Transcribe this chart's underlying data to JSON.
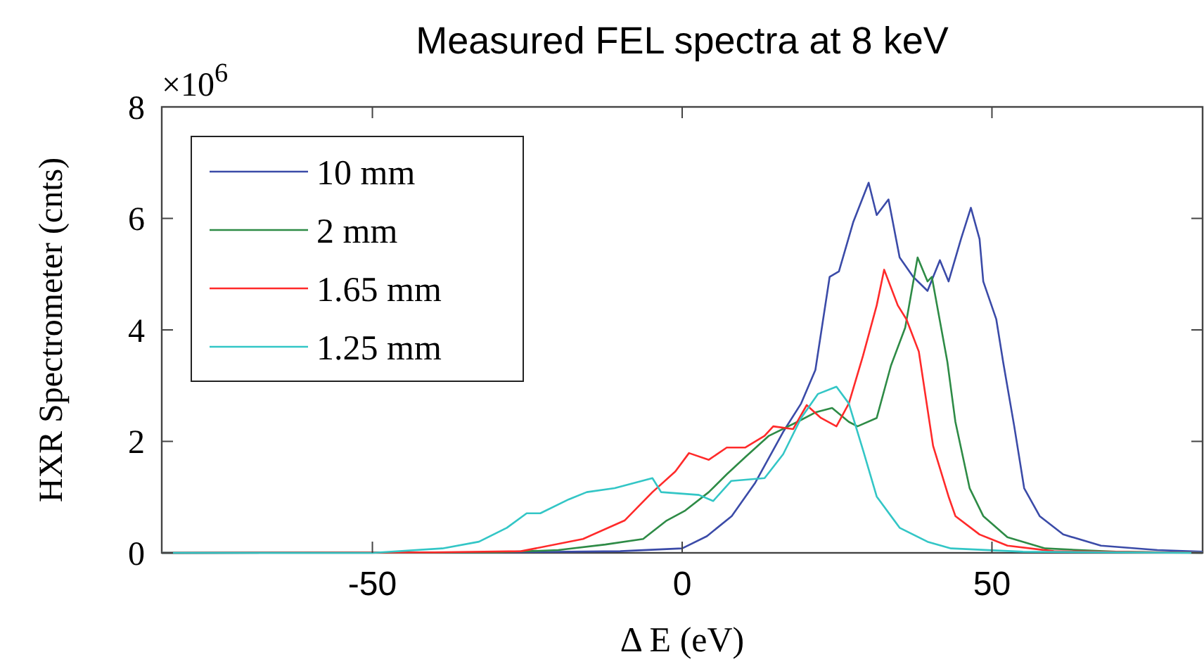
{
  "chart_data": {
    "type": "line",
    "title": "Measured FEL spectra at 8 keV",
    "xlabel": "Δ E (eV)",
    "ylabel": "HXR Spectrometer (cnts)",
    "annotations": [
      "×10$^{6}$"
    ],
    "xlim": [
      -84,
      84
    ],
    "ylim": [
      0,
      8
    ],
    "xticks": [
      -50,
      0,
      50
    ],
    "yticks": [
      0,
      2,
      4,
      6,
      8
    ],
    "grid": false,
    "legend": "top left",
    "marker": "none",
    "line_style": "solid",
    "series": [
      {
        "name": "10 mm",
        "color": "#3b4ba8",
        "x": [
          -84,
          -30,
          -10,
          0,
          4,
          8,
          11.8,
          16.3,
          19.2,
          21.5,
          23.8,
          25.3,
          27.6,
          30.1,
          31.4,
          33.3,
          35.1,
          37.3,
          39.6,
          41.6,
          43.0,
          45.0,
          46.6,
          48.0,
          48.6,
          50.7,
          51.8,
          53.6,
          55.2,
          57.7,
          61.5,
          67.6,
          76.7,
          84
        ],
        "values": [
          0,
          0.01,
          0.03,
          0.08,
          0.3,
          0.66,
          1.26,
          2.17,
          2.68,
          3.28,
          4.95,
          5.05,
          5.93,
          6.64,
          6.06,
          6.34,
          5.3,
          4.95,
          4.7,
          5.25,
          4.87,
          5.63,
          6.19,
          5.63,
          4.87,
          4.19,
          3.43,
          2.27,
          1.16,
          0.66,
          0.33,
          0.13,
          0.05,
          0.02
        ]
      },
      {
        "name": "2 mm",
        "color": "#2e8b46",
        "x": [
          -84,
          -30,
          -20,
          -12.4,
          -6.3,
          -2.5,
          0.5,
          4.3,
          7.2,
          10.2,
          14.0,
          18.6,
          21.5,
          24.2,
          26.9,
          28.3,
          31.4,
          33.7,
          36.0,
          38.0,
          39.6,
          40.3,
          42.8,
          44.1,
          46.4,
          48.6,
          52.5,
          58.6,
          70,
          84
        ],
        "values": [
          0,
          0.01,
          0.05,
          0.15,
          0.25,
          0.58,
          0.76,
          1.09,
          1.41,
          1.72,
          2.1,
          2.35,
          2.52,
          2.6,
          2.35,
          2.27,
          2.42,
          3.36,
          4.04,
          5.3,
          4.87,
          4.95,
          3.43,
          2.35,
          1.16,
          0.66,
          0.28,
          0.08,
          0.02,
          0
        ]
      },
      {
        "name": "1.65 mm",
        "color": "#ff2a2a",
        "x": [
          -84,
          -40,
          -26,
          -16,
          -9.3,
          -4.8,
          -1.1,
          1.1,
          4.3,
          7.2,
          10.2,
          13.3,
          14.7,
          17.9,
          20.1,
          22.4,
          24.9,
          26.9,
          29.2,
          31.4,
          32.6,
          34.8,
          36.2,
          38.2,
          40.5,
          43.0,
          44.1,
          48.0,
          52.5,
          60,
          84
        ],
        "values": [
          0,
          0.01,
          0.03,
          0.25,
          0.58,
          1.09,
          1.46,
          1.79,
          1.67,
          1.89,
          1.89,
          2.1,
          2.27,
          2.22,
          2.65,
          2.42,
          2.27,
          2.68,
          3.54,
          4.44,
          5.08,
          4.44,
          4.19,
          3.61,
          1.92,
          1.01,
          0.66,
          0.33,
          0.13,
          0.03,
          0
        ]
      },
      {
        "name": "1.25 mm",
        "color": "#33c6c6",
        "x": [
          -84,
          -50,
          -38.7,
          -32.8,
          -28.3,
          -25.1,
          -22.9,
          -18.3,
          -15.4,
          -10.9,
          -4.8,
          -3.4,
          2.7,
          5.0,
          7.9,
          13.3,
          16.3,
          19.2,
          21.9,
          24.9,
          26.9,
          29.2,
          31.4,
          35.1,
          39.6,
          43.4,
          55,
          84
        ],
        "values": [
          0,
          0,
          0.08,
          0.2,
          0.45,
          0.71,
          0.71,
          0.96,
          1.09,
          1.16,
          1.34,
          1.09,
          1.04,
          0.93,
          1.29,
          1.34,
          1.77,
          2.42,
          2.85,
          2.98,
          2.68,
          1.84,
          1.01,
          0.45,
          0.2,
          0.08,
          0.02,
          0
        ]
      }
    ]
  }
}
